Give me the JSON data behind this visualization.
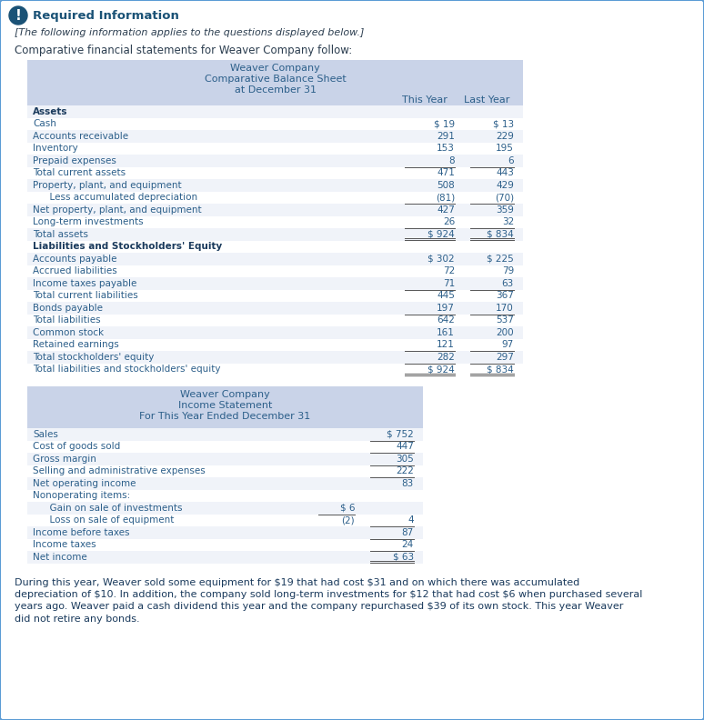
{
  "page_bg": "#ffffff",
  "outer_border_color": "#5b9bd5",
  "header_bg": "#c9d3e8",
  "table_row_bg": "#f0f3f9",
  "table_alt_bg": "#ffffff",
  "icon_bg": "#1a5276",
  "icon_color": "#ffffff",
  "title_color": "#1a5276",
  "text_color": "#2c3e50",
  "mono_color": "#2c5f8a",
  "bold_color": "#1a3a5c",
  "header_text_color": "#2c5f8a",
  "required_info_title": "Required Information",
  "required_info_subtitle": "[The following information applies to the questions displayed below.]",
  "intro_text": "Comparative financial statements for Weaver Company follow:",
  "bs_title1": "Weaver Company",
  "bs_title2": "Comparative Balance Sheet",
  "bs_title3": "at December 31",
  "bs_col1": "This Year",
  "bs_col2": "Last Year",
  "bs_rows": [
    {
      "label": "Assets",
      "ty": "",
      "ly": "",
      "bold": true,
      "indent": 0
    },
    {
      "label": "Cash",
      "ty": "$ 19",
      "ly": "$ 13",
      "bold": false,
      "indent": 0
    },
    {
      "label": "Accounts receivable",
      "ty": "291",
      "ly": "229",
      "bold": false,
      "indent": 0
    },
    {
      "label": "Inventory",
      "ty": "153",
      "ly": "195",
      "bold": false,
      "indent": 0
    },
    {
      "label": "Prepaid expenses",
      "ty": "8",
      "ly": "6",
      "bold": false,
      "indent": 0
    },
    {
      "label": "Total current assets",
      "ty": "471",
      "ly": "443",
      "bold": false,
      "indent": 0,
      "topline": true
    },
    {
      "label": "Property, plant, and equipment",
      "ty": "508",
      "ly": "429",
      "bold": false,
      "indent": 0
    },
    {
      "label": "  Less accumulated depreciation",
      "ty": "(81)",
      "ly": "(70)",
      "bold": false,
      "indent": 1
    },
    {
      "label": "Net property, plant, and equipment",
      "ty": "427",
      "ly": "359",
      "bold": false,
      "indent": 0,
      "topline": true
    },
    {
      "label": "Long-term investments",
      "ty": "26",
      "ly": "32",
      "bold": false,
      "indent": 0
    },
    {
      "label": "Total assets",
      "ty": "$ 924",
      "ly": "$ 834",
      "bold": false,
      "indent": 0,
      "topline": true,
      "doubleline": true
    },
    {
      "label": "Liabilities and Stockholders' Equity",
      "ty": "",
      "ly": "",
      "bold": true,
      "indent": 0
    },
    {
      "label": "Accounts payable",
      "ty": "$ 302",
      "ly": "$ 225",
      "bold": false,
      "indent": 0
    },
    {
      "label": "Accrued liabilities",
      "ty": "72",
      "ly": "79",
      "bold": false,
      "indent": 0
    },
    {
      "label": "Income taxes payable",
      "ty": "71",
      "ly": "63",
      "bold": false,
      "indent": 0
    },
    {
      "label": "Total current liabilities",
      "ty": "445",
      "ly": "367",
      "bold": false,
      "indent": 0,
      "topline": true
    },
    {
      "label": "Bonds payable",
      "ty": "197",
      "ly": "170",
      "bold": false,
      "indent": 0
    },
    {
      "label": "Total liabilities",
      "ty": "642",
      "ly": "537",
      "bold": false,
      "indent": 0,
      "topline": true
    },
    {
      "label": "Common stock",
      "ty": "161",
      "ly": "200",
      "bold": false,
      "indent": 0
    },
    {
      "label": "Retained earnings",
      "ty": "121",
      "ly": "97",
      "bold": false,
      "indent": 0
    },
    {
      "label": "Total stockholders' equity",
      "ty": "282",
      "ly": "297",
      "bold": false,
      "indent": 0,
      "topline": true
    },
    {
      "label": "Total liabilities and stockholders' equity",
      "ty": "$ 924",
      "ly": "$ 834",
      "bold": false,
      "indent": 0,
      "topline": true,
      "doubleline": true
    }
  ],
  "is_title1": "Weaver Company",
  "is_title2": "Income Statement",
  "is_title3": "For This Year Ended December 31",
  "is_rows": [
    {
      "label": "Sales",
      "col1": "",
      "col2": "$ 752",
      "indent": 0
    },
    {
      "label": "Cost of goods sold",
      "col1": "",
      "col2": "447",
      "indent": 0,
      "topline2": true
    },
    {
      "label": "Gross margin",
      "col1": "",
      "col2": "305",
      "indent": 0,
      "topline2": true
    },
    {
      "label": "Selling and administrative expenses",
      "col1": "",
      "col2": "222",
      "indent": 0,
      "topline2": true
    },
    {
      "label": "Net operating income",
      "col1": "",
      "col2": "83",
      "indent": 0,
      "topline2": true
    },
    {
      "label": "Nonoperating items:",
      "col1": "",
      "col2": "",
      "indent": 0
    },
    {
      "label": "  Gain on sale of investments",
      "col1": "$ 6",
      "col2": "",
      "indent": 1
    },
    {
      "label": "  Loss on sale of equipment",
      "col1": "(2)",
      "col2": "4",
      "indent": 1,
      "topline1": true
    },
    {
      "label": "Income before taxes",
      "col1": "",
      "col2": "87",
      "indent": 0,
      "topline2": true
    },
    {
      "label": "Income taxes",
      "col1": "",
      "col2": "24",
      "indent": 0,
      "topline2": true
    },
    {
      "label": "Net income",
      "col1": "",
      "col2": "$ 63",
      "indent": 0,
      "topline2": true,
      "doubleline": true
    }
  ],
  "footer_line1": "During this year, Weaver sold some equipment for $19 that had cost $31 and on which there was accumulated",
  "footer_line2": "depreciation of $10. In addition, the company sold long-term investments for $12 that had cost $6 when purchased several",
  "footer_line3": "years ago. Weaver paid a cash dividend this year and the company repurchased $39 of its own stock. This year Weaver",
  "footer_line4": "did not retire any bonds."
}
